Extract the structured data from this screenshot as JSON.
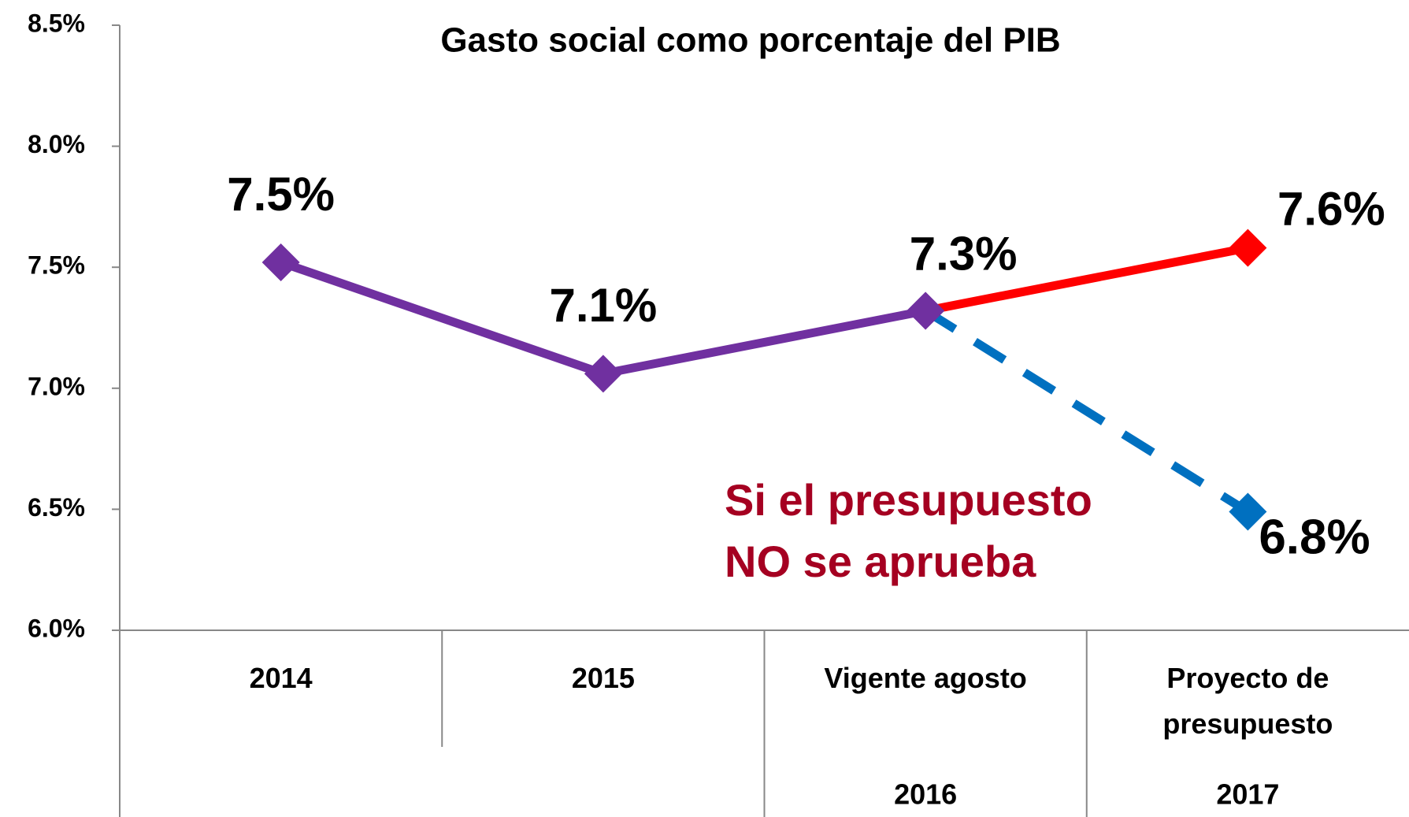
{
  "chart_data": {
    "type": "line",
    "title": "Gasto social como porcentaje del PIB",
    "categories": [
      "2014",
      "2015",
      "Vigente agosto",
      "Proyecto de presupuesto"
    ],
    "category_groups": [
      null,
      null,
      "2016",
      "2017"
    ],
    "series": [
      {
        "color": "#7030a0",
        "values": [
          7.52,
          7.06,
          7.32,
          null
        ],
        "value_labels": [
          "7.5%",
          "7.1%",
          "7.3%",
          null
        ],
        "dashed": false
      },
      {
        "color": "#ff0000",
        "values": [
          null,
          null,
          7.32,
          7.58
        ],
        "value_labels": [
          null,
          null,
          null,
          "7.6%"
        ],
        "dashed": false
      },
      {
        "color": "#0070c0",
        "values": [
          null,
          null,
          7.32,
          6.49
        ],
        "dashed": true
      }
    ],
    "annotations": [
      {
        "text": "6.8%",
        "color": "#000000"
      },
      {
        "lines": [
          "Si el presupuesto",
          "NO se aprueba"
        ],
        "color": "#a50021"
      }
    ],
    "ylim": [
      6.0,
      8.5
    ],
    "yticks": [
      {
        "value": 6.0,
        "label": "6.0%"
      },
      {
        "value": 6.5,
        "label": "6.5%"
      },
      {
        "value": 7.0,
        "label": "7.0%"
      },
      {
        "value": 7.5,
        "label": "7.5%"
      },
      {
        "value": 8.0,
        "label": "8.0%"
      },
      {
        "value": 8.5,
        "label": "8.5%"
      }
    ],
    "grid": false
  }
}
